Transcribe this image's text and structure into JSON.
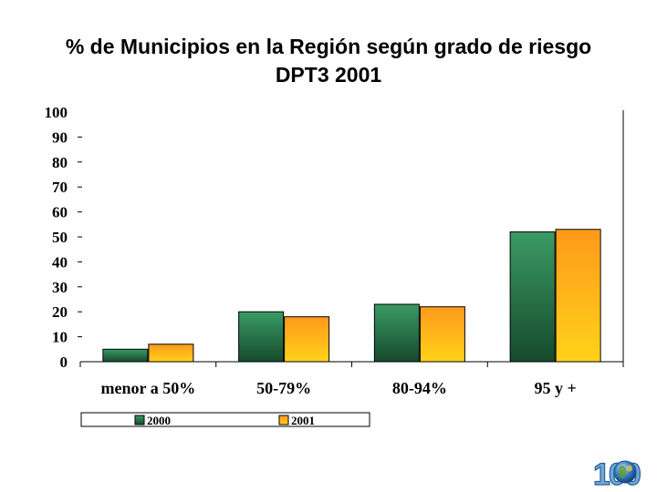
{
  "title_lines": [
    "% de Municipios en la Región según grado de riesgo",
    "DPT3  2001"
  ],
  "logo": {
    "text": "100",
    "icon": "globe-100-years-logo"
  },
  "colors": {
    "series_2000_top": "#3a9a65",
    "series_2000_bottom": "#164a2c",
    "series_2001_top": "#ff9a1a",
    "series_2001_bottom": "#ffd21a",
    "axis": "#000000"
  },
  "chart_data": {
    "type": "bar",
    "title": "% de Municipios en la Región según grado de riesgo DPT3  2001",
    "categories": [
      "menor a 50%",
      "50-79%",
      "80-94%",
      "95 y +"
    ],
    "series": [
      {
        "name": "2000",
        "values": [
          5,
          20,
          23,
          52
        ]
      },
      {
        "name": "2001",
        "values": [
          7,
          18,
          22,
          53
        ]
      }
    ],
    "ylim": [
      0,
      100
    ],
    "yticks": [
      0,
      10,
      20,
      30,
      40,
      50,
      60,
      70,
      80,
      90,
      100
    ],
    "xlabel": "",
    "ylabel": "",
    "grid": false,
    "legend_position": "bottom"
  }
}
